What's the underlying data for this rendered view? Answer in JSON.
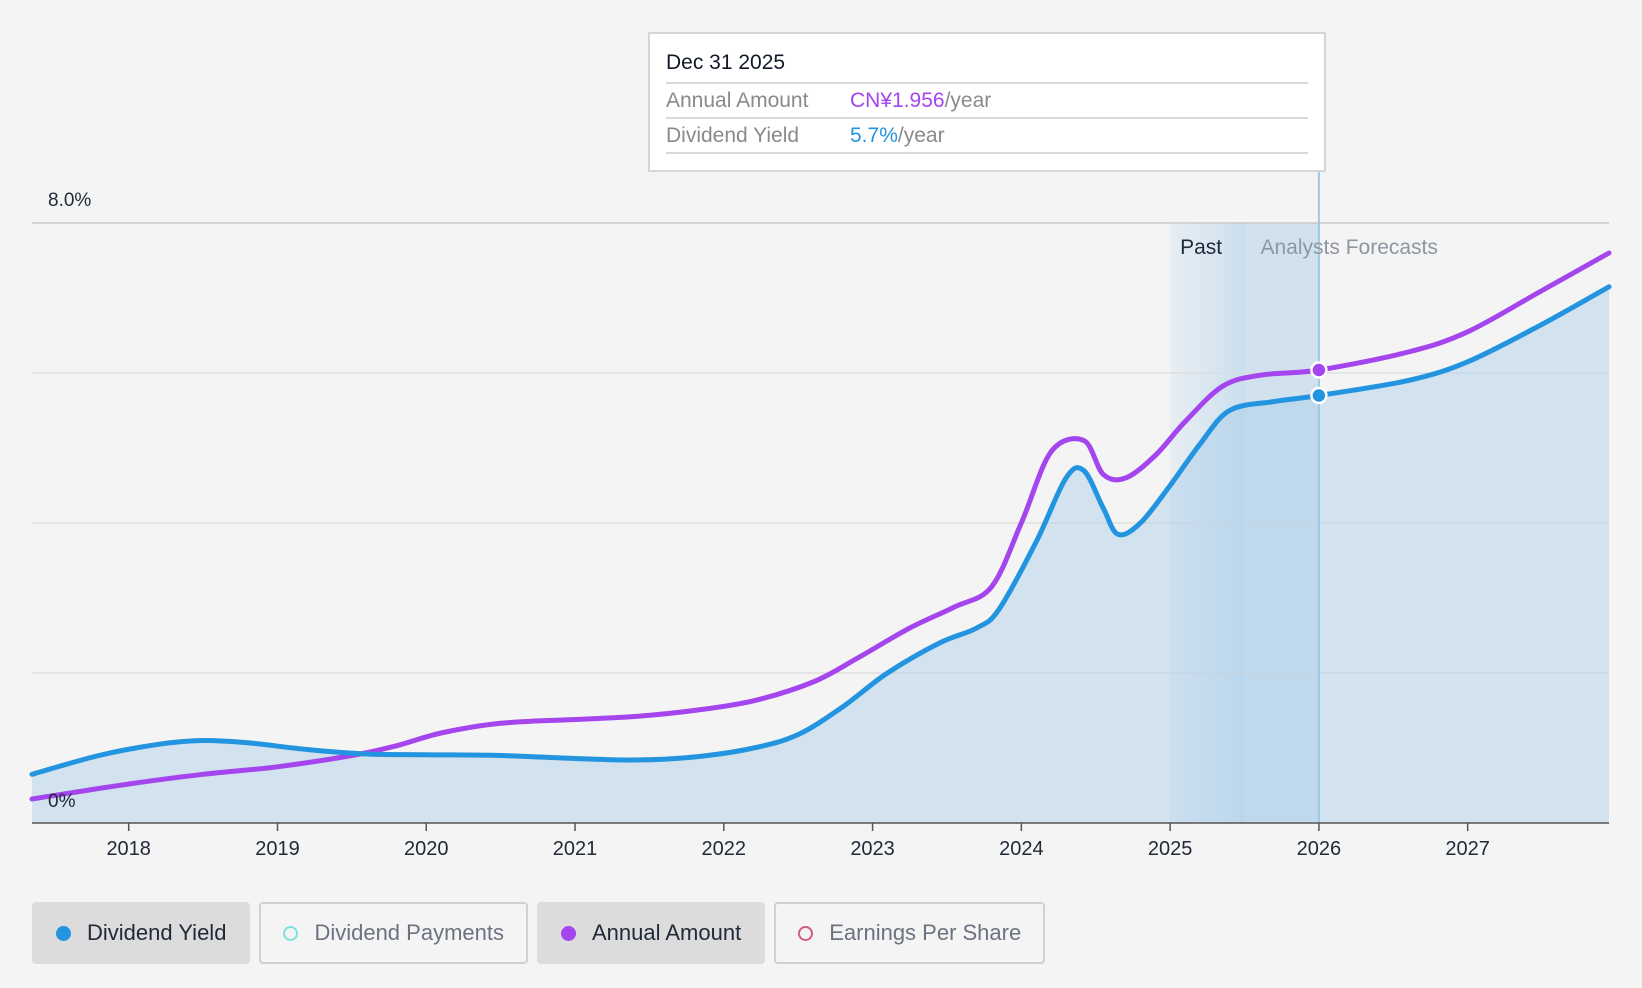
{
  "tooltip": {
    "date": "Dec 31 2025",
    "annual_amount_label": "Annual Amount",
    "annual_amount_value": "CN¥1.956",
    "annual_amount_unit": "/year",
    "dividend_yield_label": "Dividend Yield",
    "dividend_yield_value": "5.7%",
    "dividend_yield_unit": "/year"
  },
  "legend": [
    {
      "label": "Dividend Yield",
      "active": true,
      "color": "#2394df",
      "filled": true
    },
    {
      "label": "Dividend Payments",
      "active": false,
      "color": "#7de3d9",
      "filled": false
    },
    {
      "label": "Annual Amount",
      "active": true,
      "color": "#a445ed",
      "filled": true
    },
    {
      "label": "Earnings Per Share",
      "active": false,
      "color": "#d15c8c",
      "filled": false
    }
  ],
  "chart_data": {
    "type": "line",
    "y_axis": {
      "min": 0,
      "max": 8.0,
      "labels": [
        "8.0%",
        "0%"
      ],
      "unit": "%",
      "gridlines": [
        0,
        2,
        4,
        6,
        8
      ]
    },
    "x_axis": {
      "range": [
        2017.35,
        2027.95
      ],
      "tick_labels": [
        "2018",
        "2019",
        "2020",
        "2021",
        "2022",
        "2023",
        "2024",
        "2025",
        "2026",
        "2027"
      ],
      "tick_values": [
        2018,
        2019,
        2020,
        2021,
        2022,
        2023,
        2024,
        2025,
        2026,
        2027
      ]
    },
    "zones": {
      "past_label": "Past",
      "forecast_label": "Analysts Forecasts",
      "past_start": 2025.0,
      "forecast_start": 2025.5,
      "cursor": 2026.0
    },
    "series": [
      {
        "name": "Dividend Yield",
        "color": "#2394df",
        "fill": true,
        "points": [
          [
            2017.35,
            0.65
          ],
          [
            2017.8,
            0.9
          ],
          [
            2018.2,
            1.05
          ],
          [
            2018.5,
            1.1
          ],
          [
            2018.8,
            1.07
          ],
          [
            2019.2,
            0.98
          ],
          [
            2019.6,
            0.92
          ],
          [
            2020.0,
            0.91
          ],
          [
            2020.5,
            0.9
          ],
          [
            2021.0,
            0.86
          ],
          [
            2021.4,
            0.84
          ],
          [
            2021.8,
            0.88
          ],
          [
            2022.2,
            1.0
          ],
          [
            2022.5,
            1.18
          ],
          [
            2022.8,
            1.55
          ],
          [
            2023.1,
            2.0
          ],
          [
            2023.45,
            2.4
          ],
          [
            2023.7,
            2.6
          ],
          [
            2023.85,
            2.85
          ],
          [
            2024.1,
            3.75
          ],
          [
            2024.3,
            4.6
          ],
          [
            2024.42,
            4.7
          ],
          [
            2024.55,
            4.2
          ],
          [
            2024.65,
            3.85
          ],
          [
            2024.8,
            4.0
          ],
          [
            2025.0,
            4.5
          ],
          [
            2025.2,
            5.05
          ],
          [
            2025.4,
            5.5
          ],
          [
            2025.7,
            5.62
          ],
          [
            2026.0,
            5.7
          ],
          [
            2026.6,
            5.9
          ],
          [
            2027.0,
            6.15
          ],
          [
            2027.5,
            6.65
          ],
          [
            2027.95,
            7.15
          ]
        ]
      },
      {
        "name": "Annual Amount",
        "color": "#a445ed",
        "fill": false,
        "points": [
          [
            2017.35,
            0.32
          ],
          [
            2018.0,
            0.52
          ],
          [
            2018.5,
            0.65
          ],
          [
            2019.0,
            0.75
          ],
          [
            2019.5,
            0.9
          ],
          [
            2019.8,
            1.03
          ],
          [
            2020.1,
            1.2
          ],
          [
            2020.5,
            1.33
          ],
          [
            2021.0,
            1.38
          ],
          [
            2021.4,
            1.42
          ],
          [
            2021.8,
            1.5
          ],
          [
            2022.2,
            1.63
          ],
          [
            2022.6,
            1.88
          ],
          [
            2022.9,
            2.2
          ],
          [
            2023.25,
            2.6
          ],
          [
            2023.55,
            2.88
          ],
          [
            2023.8,
            3.15
          ],
          [
            2024.0,
            4.0
          ],
          [
            2024.2,
            4.95
          ],
          [
            2024.42,
            5.1
          ],
          [
            2024.55,
            4.65
          ],
          [
            2024.7,
            4.6
          ],
          [
            2024.9,
            4.9
          ],
          [
            2025.1,
            5.35
          ],
          [
            2025.35,
            5.82
          ],
          [
            2025.6,
            5.97
          ],
          [
            2026.0,
            6.04
          ],
          [
            2026.6,
            6.28
          ],
          [
            2027.0,
            6.55
          ],
          [
            2027.5,
            7.1
          ],
          [
            2027.95,
            7.6
          ]
        ]
      }
    ]
  }
}
